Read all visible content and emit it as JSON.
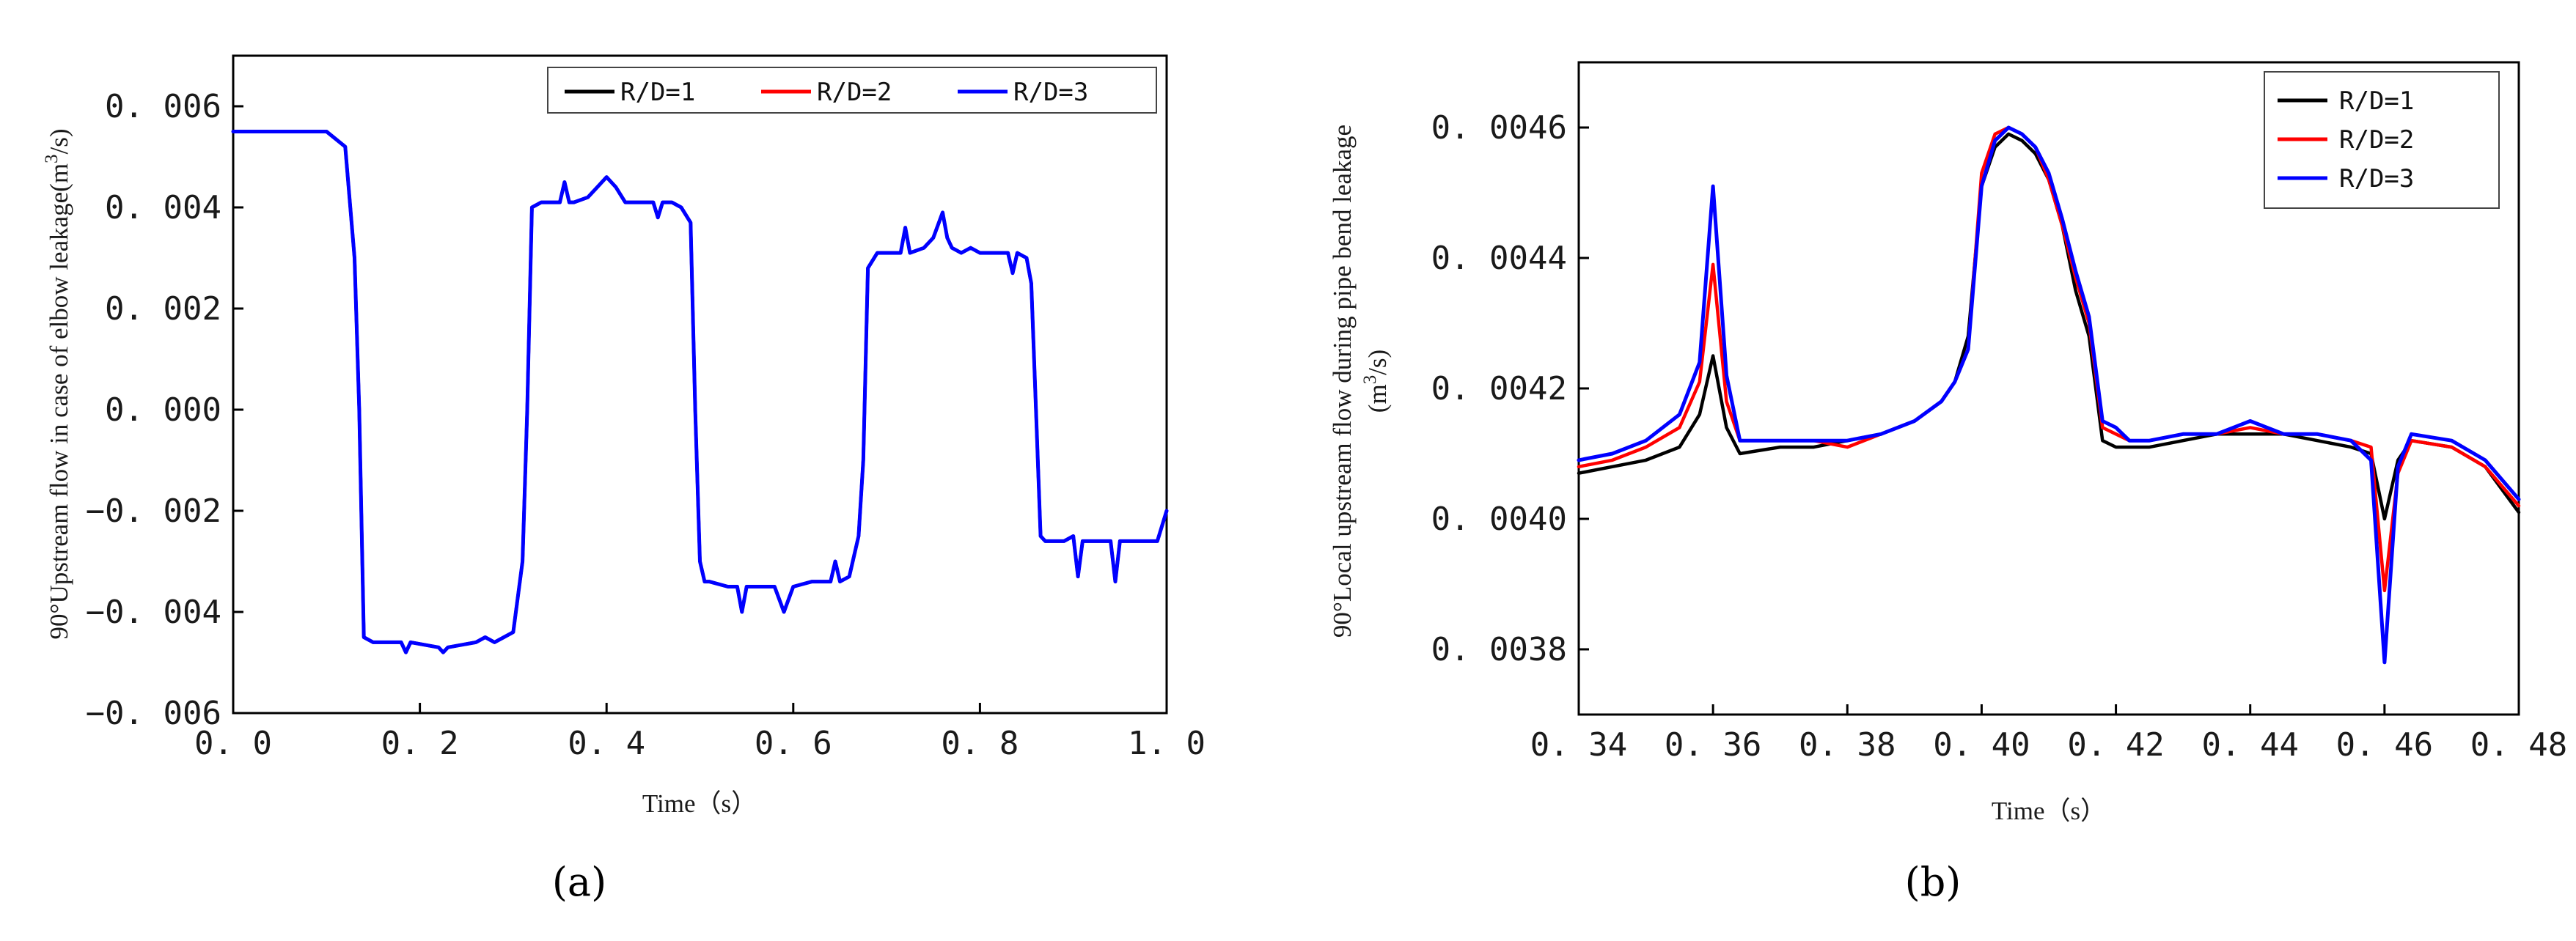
{
  "figure": {
    "panel_a_label": "(a)",
    "panel_b_label": "(b)",
    "colors": {
      "R/D=1": "#000000",
      "R/D=2": "#ff0000",
      "R/D=3": "#0000ff"
    }
  },
  "chart_data": [
    {
      "type": "line",
      "panel": "a",
      "title": "",
      "xlabel": "Time（s）",
      "ylabel_text": "90°Upstream flow in case of elbow leakage(m",
      "ylabel_sup": "3",
      "ylabel_end": "/s)",
      "xlim": [
        0.0,
        1.0
      ],
      "ylim": [
        -0.006,
        0.007
      ],
      "xticks": [
        0.0,
        0.2,
        0.4,
        0.6,
        0.8,
        1.0
      ],
      "xtick_labels": [
        "0. 0",
        "0. 2",
        "0. 4",
        "0. 6",
        "0. 8",
        "1. 0"
      ],
      "yticks": [
        -0.006,
        -0.004,
        -0.002,
        0.0,
        0.002,
        0.004,
        0.006
      ],
      "ytick_labels": [
        "−0. 006",
        "−0. 004",
        "−0. 002",
        "0. 000",
        "0. 002",
        "0. 004",
        "0. 006"
      ],
      "legend_position": "top-right",
      "legend_layout": "horizontal",
      "series": [
        {
          "name": "R/D=1",
          "color": "#000000",
          "x": [
            0,
            0.1,
            0.12,
            0.13,
            0.135,
            0.14,
            0.15,
            0.18,
            0.185,
            0.19,
            0.22,
            0.225,
            0.23,
            0.26,
            0.27,
            0.28,
            0.29,
            0.3,
            0.31,
            0.315,
            0.32,
            0.33,
            0.35,
            0.355,
            0.36,
            0.365,
            0.38,
            0.39,
            0.4,
            0.41,
            0.42,
            0.44,
            0.45,
            0.455,
            0.46,
            0.47,
            0.48,
            0.49,
            0.495,
            0.5,
            0.505,
            0.51,
            0.53,
            0.54,
            0.545,
            0.55,
            0.58,
            0.59,
            0.6,
            0.62,
            0.64,
            0.645,
            0.65,
            0.66,
            0.67,
            0.675,
            0.68,
            0.69,
            0.7,
            0.715,
            0.72,
            0.725,
            0.74,
            0.75,
            0.76,
            0.765,
            0.77,
            0.78,
            0.79,
            0.8,
            0.82,
            0.83,
            0.835,
            0.84,
            0.85,
            0.855,
            0.86,
            0.865,
            0.87,
            0.88,
            0.89,
            0.9,
            0.905,
            0.91,
            0.93,
            0.94,
            0.945,
            0.95,
            0.97,
            0.99,
            1.0
          ],
          "y": [
            0.0055,
            0.0055,
            0.0052,
            0.003,
            0.0,
            -0.0045,
            -0.0046,
            -0.0046,
            -0.0048,
            -0.0046,
            -0.0047,
            -0.0048,
            -0.0047,
            -0.0046,
            -0.0045,
            -0.0046,
            -0.0045,
            -0.0044,
            -0.003,
            0.0,
            0.004,
            0.0041,
            0.0041,
            0.0045,
            0.0041,
            0.0041,
            0.0042,
            0.0044,
            0.0046,
            0.0044,
            0.0041,
            0.0041,
            0.0041,
            0.0038,
            0.0041,
            0.0041,
            0.004,
            0.0037,
            0.0,
            -0.003,
            -0.0034,
            -0.0034,
            -0.0035,
            -0.0035,
            -0.004,
            -0.0035,
            -0.0035,
            -0.004,
            -0.0035,
            -0.0034,
            -0.0034,
            -0.003,
            -0.0034,
            -0.0033,
            -0.0025,
            -0.001,
            0.0028,
            0.0031,
            0.0031,
            0.0031,
            0.0036,
            0.0031,
            0.0032,
            0.0034,
            0.0039,
            0.0034,
            0.0032,
            0.0031,
            0.0032,
            0.0031,
            0.0031,
            0.0031,
            0.0027,
            0.0031,
            0.003,
            0.0025,
            0.0,
            -0.0025,
            -0.0026,
            -0.0026,
            -0.0026,
            -0.0025,
            -0.0033,
            -0.0026,
            -0.0026,
            -0.0026,
            -0.0034,
            -0.0026,
            -0.0026,
            -0.0026,
            -0.002
          ]
        },
        {
          "name": "R/D=2",
          "color": "#ff0000",
          "x": [
            0,
            0.1,
            0.12,
            0.13,
            0.135,
            0.14,
            0.15,
            0.18,
            0.185,
            0.19,
            0.22,
            0.225,
            0.23,
            0.26,
            0.27,
            0.28,
            0.29,
            0.3,
            0.31,
            0.315,
            0.32,
            0.33,
            0.35,
            0.355,
            0.36,
            0.365,
            0.38,
            0.39,
            0.4,
            0.41,
            0.42,
            0.44,
            0.45,
            0.455,
            0.46,
            0.47,
            0.48,
            0.49,
            0.495,
            0.5,
            0.505,
            0.51,
            0.53,
            0.54,
            0.545,
            0.55,
            0.58,
            0.59,
            0.6,
            0.62,
            0.64,
            0.645,
            0.65,
            0.66,
            0.67,
            0.675,
            0.68,
            0.69,
            0.7,
            0.715,
            0.72,
            0.725,
            0.74,
            0.75,
            0.76,
            0.765,
            0.77,
            0.78,
            0.79,
            0.8,
            0.82,
            0.83,
            0.835,
            0.84,
            0.85,
            0.855,
            0.86,
            0.865,
            0.87,
            0.88,
            0.89,
            0.9,
            0.905,
            0.91,
            0.93,
            0.94,
            0.945,
            0.95,
            0.97,
            0.99,
            1.0
          ],
          "y": [
            0.0055,
            0.0055,
            0.0052,
            0.003,
            0.0,
            -0.0045,
            -0.0046,
            -0.0046,
            -0.0048,
            -0.0046,
            -0.0047,
            -0.0048,
            -0.0047,
            -0.0046,
            -0.0045,
            -0.0046,
            -0.0045,
            -0.0044,
            -0.003,
            0.0,
            0.004,
            0.0041,
            0.0041,
            0.0045,
            0.0041,
            0.0041,
            0.0042,
            0.0044,
            0.0046,
            0.0044,
            0.0041,
            0.0041,
            0.0041,
            0.0038,
            0.0041,
            0.0041,
            0.004,
            0.0037,
            0.0,
            -0.003,
            -0.0034,
            -0.0034,
            -0.0035,
            -0.0035,
            -0.004,
            -0.0035,
            -0.0035,
            -0.004,
            -0.0035,
            -0.0034,
            -0.0034,
            -0.003,
            -0.0034,
            -0.0033,
            -0.0025,
            -0.001,
            0.0028,
            0.0031,
            0.0031,
            0.0031,
            0.0036,
            0.0031,
            0.0032,
            0.0034,
            0.0039,
            0.0034,
            0.0032,
            0.0031,
            0.0032,
            0.0031,
            0.0031,
            0.0031,
            0.0027,
            0.0031,
            0.003,
            0.0025,
            0.0,
            -0.0025,
            -0.0026,
            -0.0026,
            -0.0026,
            -0.0025,
            -0.0033,
            -0.0026,
            -0.0026,
            -0.0026,
            -0.0034,
            -0.0026,
            -0.0026,
            -0.0026,
            -0.002
          ]
        },
        {
          "name": "R/D=3",
          "color": "#0000ff",
          "x": [
            0,
            0.1,
            0.12,
            0.13,
            0.135,
            0.14,
            0.15,
            0.18,
            0.185,
            0.19,
            0.22,
            0.225,
            0.23,
            0.26,
            0.27,
            0.28,
            0.29,
            0.3,
            0.31,
            0.315,
            0.32,
            0.33,
            0.35,
            0.355,
            0.36,
            0.365,
            0.38,
            0.39,
            0.4,
            0.41,
            0.42,
            0.44,
            0.45,
            0.455,
            0.46,
            0.47,
            0.48,
            0.49,
            0.495,
            0.5,
            0.505,
            0.51,
            0.53,
            0.54,
            0.545,
            0.55,
            0.58,
            0.59,
            0.6,
            0.62,
            0.64,
            0.645,
            0.65,
            0.66,
            0.67,
            0.675,
            0.68,
            0.69,
            0.7,
            0.715,
            0.72,
            0.725,
            0.74,
            0.75,
            0.76,
            0.765,
            0.77,
            0.78,
            0.79,
            0.8,
            0.82,
            0.83,
            0.835,
            0.84,
            0.85,
            0.855,
            0.86,
            0.865,
            0.87,
            0.88,
            0.89,
            0.9,
            0.905,
            0.91,
            0.93,
            0.94,
            0.945,
            0.95,
            0.97,
            0.99,
            1.0
          ],
          "y": [
            0.0055,
            0.0055,
            0.0052,
            0.003,
            0.0,
            -0.0045,
            -0.0046,
            -0.0046,
            -0.0048,
            -0.0046,
            -0.0047,
            -0.0048,
            -0.0047,
            -0.0046,
            -0.0045,
            -0.0046,
            -0.0045,
            -0.0044,
            -0.003,
            0.0,
            0.004,
            0.0041,
            0.0041,
            0.0045,
            0.0041,
            0.0041,
            0.0042,
            0.0044,
            0.0046,
            0.0044,
            0.0041,
            0.0041,
            0.0041,
            0.0038,
            0.0041,
            0.0041,
            0.004,
            0.0037,
            0.0,
            -0.003,
            -0.0034,
            -0.0034,
            -0.0035,
            -0.0035,
            -0.004,
            -0.0035,
            -0.0035,
            -0.004,
            -0.0035,
            -0.0034,
            -0.0034,
            -0.003,
            -0.0034,
            -0.0033,
            -0.0025,
            -0.001,
            0.0028,
            0.0031,
            0.0031,
            0.0031,
            0.0036,
            0.0031,
            0.0032,
            0.0034,
            0.0039,
            0.0034,
            0.0032,
            0.0031,
            0.0032,
            0.0031,
            0.0031,
            0.0031,
            0.0027,
            0.0031,
            0.003,
            0.0025,
            0.0,
            -0.0025,
            -0.0026,
            -0.0026,
            -0.0026,
            -0.0025,
            -0.0033,
            -0.0026,
            -0.0026,
            -0.0026,
            -0.0034,
            -0.0026,
            -0.0026,
            -0.0026,
            -0.002
          ]
        }
      ]
    },
    {
      "type": "line",
      "panel": "b",
      "title": "",
      "xlabel": "Time（s）",
      "ylabel_line1": "90°Local upstream flow during pipe bend leakage",
      "ylabel_line2_pre": "(m",
      "ylabel_line2_sup": "3",
      "ylabel_line2_end": "/s)",
      "xlim": [
        0.34,
        0.48
      ],
      "ylim": [
        0.0037,
        0.0047
      ],
      "xticks": [
        0.34,
        0.36,
        0.38,
        0.4,
        0.42,
        0.44,
        0.46,
        0.48
      ],
      "xtick_labels": [
        "0. 34",
        "0. 36",
        "0. 38",
        "0. 40",
        "0. 42",
        "0. 44",
        "0. 46",
        "0. 48"
      ],
      "yticks": [
        0.0038,
        0.004,
        0.0042,
        0.0044,
        0.0046
      ],
      "ytick_labels": [
        "0. 0038",
        "0. 0040",
        "0. 0042",
        "0. 0044",
        "0. 0046"
      ],
      "legend_position": "top-right",
      "legend_layout": "vertical",
      "series": [
        {
          "name": "R/D=1",
          "color": "#000000",
          "x": [
            0.34,
            0.345,
            0.35,
            0.355,
            0.358,
            0.36,
            0.362,
            0.364,
            0.37,
            0.375,
            0.38,
            0.385,
            0.39,
            0.394,
            0.396,
            0.398,
            0.4,
            0.402,
            0.404,
            0.406,
            0.408,
            0.41,
            0.412,
            0.414,
            0.416,
            0.418,
            0.42,
            0.422,
            0.425,
            0.43,
            0.435,
            0.44,
            0.445,
            0.45,
            0.455,
            0.458,
            0.46,
            0.462,
            0.464,
            0.47,
            0.475,
            0.48
          ],
          "y": [
            0.00407,
            0.00408,
            0.00409,
            0.00411,
            0.00416,
            0.00425,
            0.00414,
            0.0041,
            0.00411,
            0.00411,
            0.00412,
            0.00413,
            0.00415,
            0.00418,
            0.00421,
            0.00428,
            0.00451,
            0.00457,
            0.00459,
            0.00458,
            0.00456,
            0.00452,
            0.00445,
            0.00435,
            0.00428,
            0.00412,
            0.00411,
            0.00411,
            0.00411,
            0.00412,
            0.00413,
            0.00413,
            0.00413,
            0.00412,
            0.00411,
            0.0041,
            0.004,
            0.00409,
            0.00412,
            0.00411,
            0.00408,
            0.00401
          ]
        },
        {
          "name": "R/D=2",
          "color": "#ff0000",
          "x": [
            0.34,
            0.345,
            0.35,
            0.355,
            0.358,
            0.36,
            0.362,
            0.364,
            0.37,
            0.375,
            0.38,
            0.385,
            0.39,
            0.394,
            0.396,
            0.398,
            0.4,
            0.402,
            0.404,
            0.406,
            0.408,
            0.41,
            0.412,
            0.414,
            0.416,
            0.418,
            0.42,
            0.422,
            0.425,
            0.43,
            0.435,
            0.44,
            0.445,
            0.45,
            0.455,
            0.458,
            0.46,
            0.462,
            0.464,
            0.47,
            0.475,
            0.48
          ],
          "y": [
            0.00408,
            0.00409,
            0.00411,
            0.00414,
            0.00421,
            0.00439,
            0.00418,
            0.00412,
            0.00412,
            0.00412,
            0.00411,
            0.00413,
            0.00415,
            0.00418,
            0.00421,
            0.00426,
            0.00453,
            0.00459,
            0.0046,
            0.00459,
            0.00457,
            0.00452,
            0.00445,
            0.00437,
            0.0043,
            0.00414,
            0.00413,
            0.00412,
            0.00412,
            0.00413,
            0.00413,
            0.00414,
            0.00413,
            0.00413,
            0.00412,
            0.00411,
            0.00389,
            0.00407,
            0.00412,
            0.00411,
            0.00408,
            0.00402
          ]
        },
        {
          "name": "R/D=3",
          "color": "#0000ff",
          "x": [
            0.34,
            0.345,
            0.35,
            0.355,
            0.358,
            0.36,
            0.362,
            0.364,
            0.37,
            0.375,
            0.38,
            0.385,
            0.39,
            0.394,
            0.396,
            0.398,
            0.4,
            0.402,
            0.404,
            0.406,
            0.408,
            0.41,
            0.412,
            0.414,
            0.416,
            0.418,
            0.42,
            0.422,
            0.425,
            0.43,
            0.435,
            0.44,
            0.445,
            0.45,
            0.455,
            0.458,
            0.46,
            0.462,
            0.464,
            0.47,
            0.475,
            0.48
          ],
          "y": [
            0.00409,
            0.0041,
            0.00412,
            0.00416,
            0.00424,
            0.00451,
            0.00422,
            0.00412,
            0.00412,
            0.00412,
            0.00412,
            0.00413,
            0.00415,
            0.00418,
            0.00421,
            0.00426,
            0.00451,
            0.00458,
            0.0046,
            0.00459,
            0.00457,
            0.00453,
            0.00446,
            0.00438,
            0.00431,
            0.00415,
            0.00414,
            0.00412,
            0.00412,
            0.00413,
            0.00413,
            0.00415,
            0.00413,
            0.00413,
            0.00412,
            0.00409,
            0.00378,
            0.00408,
            0.00413,
            0.00412,
            0.00409,
            0.00403
          ]
        }
      ]
    }
  ]
}
